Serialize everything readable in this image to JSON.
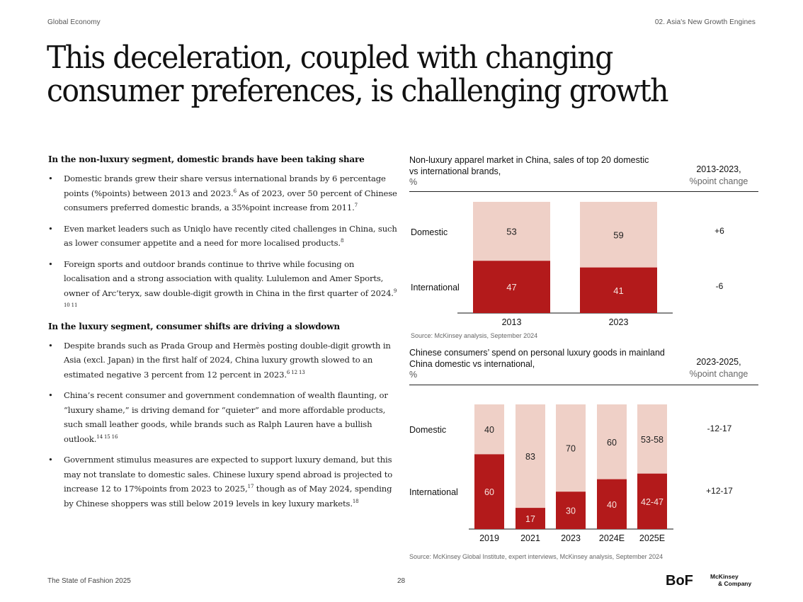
{
  "header": {
    "section": "Global Economy",
    "chapter": "02. Asia's New Growth Engines"
  },
  "title": "This deceleration, coupled with changing consumer preferences, is challenging growth",
  "text": {
    "section1": {
      "heading": "In the non-luxury segment, domestic brands have been taking share",
      "bullets": [
        {
          "text": "Domestic brands grew their share versus international brands by 6 percentage points (%points) between 2013 and 2023.",
          "sup": "6",
          "tail": " As of 2023, over 50 percent of Chinese consumers preferred domestic brands, a 35%point increase from 2011.",
          "sup2": "7"
        },
        {
          "text": "Even market leaders such as Uniqlo have recently cited challenges in China, such as lower consumer appetite and a need for more localised products.",
          "sup": "8"
        },
        {
          "text": "Foreign sports and outdoor brands continue to thrive while focusing on localisation and a strong association with quality. Lululemon and Amer Sports, owner of Arc’teryx, saw double-digit growth in China in the first quarter of 2024.",
          "sup": "9 10 11"
        }
      ]
    },
    "section2": {
      "heading": "In the luxury segment, consumer shifts are driving a slowdown",
      "bullets": [
        {
          "text": "Despite brands such as Prada Group and Hermès posting double-digit growth in Asia (excl. Japan) in the first half of 2024, China luxury growth slowed to an estimated negative 3 percent from 12 percent in 2023.",
          "sup": "6 12 13"
        },
        {
          "text": "China’s recent consumer and government condemnation of wealth flaunting, or “luxury shame,” is driving demand for “quieter” and more affordable products, such small leather goods, while brands such as Ralph Lauren have a bullish outlook.",
          "sup": "14 15 16"
        },
        {
          "text": "Government stimulus measures are expected to support luxury demand, but this may not translate to domestic sales. Chinese luxury spend abroad is projected to increase 12 to 17%points from 2023 to 2025,",
          "sup": "17",
          "tail": " though as of May 2024, spending by Chinese shoppers was still below 2019 levels in key luxury markets.",
          "sup2": "18"
        }
      ]
    }
  },
  "colors": {
    "domestic": "#EFD0C7",
    "international": "#B31A1B",
    "domestic_label": "#222222",
    "international_label": "#F6E3DE"
  },
  "chart_data": [
    {
      "type": "bar",
      "stacked": true,
      "title": "Non-luxury apparel market in China, sales of top 20 domestic vs international brands,",
      "unit": "%",
      "change_header": "2013-2023,",
      "change_subheader": "%point change",
      "categories": [
        "2013",
        "2023"
      ],
      "series": [
        {
          "name": "International",
          "values": [
            47,
            41
          ],
          "labels": [
            "47",
            "41"
          ],
          "change": "-6"
        },
        {
          "name": "Domestic",
          "values": [
            53,
            59
          ],
          "labels": [
            "53",
            "59"
          ],
          "change": "+6"
        }
      ],
      "ylim": [
        0,
        100
      ],
      "source": "Source: McKinsey analysis, September 2024"
    },
    {
      "type": "bar",
      "stacked": true,
      "title": "Chinese consumers’ spend on personal luxury goods in mainland China domestic vs international,",
      "unit": "%",
      "change_header": "2023-2025,",
      "change_subheader": "%point change",
      "categories": [
        "2019",
        "2021",
        "2023",
        "2024E",
        "2025E"
      ],
      "series": [
        {
          "name": "International",
          "values": [
            60,
            17,
            30,
            40,
            44.5
          ],
          "labels": [
            "60",
            "17",
            "30",
            "40",
            "42-47"
          ],
          "change": "+12-17"
        },
        {
          "name": "Domestic",
          "values": [
            40,
            83,
            70,
            60,
            55.5
          ],
          "labels": [
            "40",
            "83",
            "70",
            "60",
            "53-58"
          ],
          "change": "-12-17"
        }
      ],
      "ylim": [
        0,
        100
      ],
      "source": "Source: McKinsey Global Institute, expert interviews, McKinsey analysis, September 2024"
    }
  ],
  "footer": {
    "publication": "The State of Fashion 2025",
    "page": "28",
    "logo1": "BoF",
    "logo2_line1": "McKinsey",
    "logo2_line2": "& Company"
  }
}
